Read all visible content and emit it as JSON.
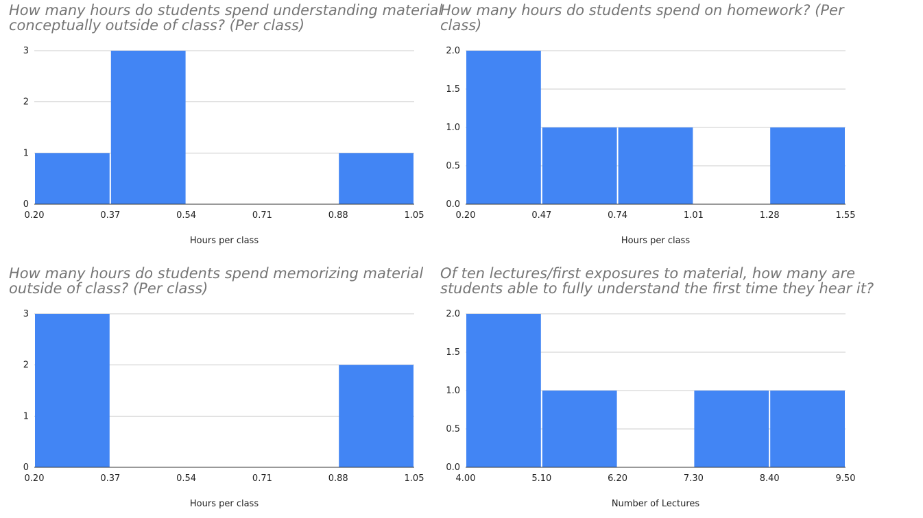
{
  "chart_data": [
    {
      "type": "bar",
      "title": "How many hours do students spend understanding material conceptually outside of class? (Per class)",
      "xlabel": "Hours per class",
      "ylabel": "",
      "bin_edges": [
        0.2,
        0.37,
        0.54,
        0.71,
        0.88,
        1.05
      ],
      "x_tick_labels": [
        "0.20",
        "0.37",
        "0.54",
        "0.71",
        "0.88",
        "1.05"
      ],
      "values": [
        1,
        3,
        0,
        0,
        1
      ],
      "ylim": [
        0,
        3
      ],
      "y_tick_labels": [
        "0",
        "1",
        "2",
        "3"
      ],
      "grid": true,
      "bar_color": "#4285F4"
    },
    {
      "type": "bar",
      "title": "How many hours do students spend on homework? (Per class)",
      "xlabel": "Hours per class",
      "ylabel": "",
      "bin_edges": [
        0.2,
        0.47,
        0.74,
        1.01,
        1.28,
        1.55
      ],
      "x_tick_labels": [
        "0.20",
        "0.47",
        "0.74",
        "1.01",
        "1.28",
        "1.55"
      ],
      "values": [
        2,
        1,
        1,
        0,
        1
      ],
      "ylim": [
        0,
        2
      ],
      "y_tick_labels": [
        "0.0",
        "0.5",
        "1.0",
        "1.5",
        "2.0"
      ],
      "grid": true,
      "bar_color": "#4285F4"
    },
    {
      "type": "bar",
      "title": "How many hours do students spend memorizing material outside of class? (Per class)",
      "xlabel": "Hours per class",
      "ylabel": "",
      "bin_edges": [
        0.2,
        0.37,
        0.54,
        0.71,
        0.88,
        1.05
      ],
      "x_tick_labels": [
        "0.20",
        "0.37",
        "0.54",
        "0.71",
        "0.88",
        "1.05"
      ],
      "values": [
        3,
        0,
        0,
        0,
        2
      ],
      "ylim": [
        0,
        3
      ],
      "y_tick_labels": [
        "0",
        "1",
        "2",
        "3"
      ],
      "grid": true,
      "bar_color": "#4285F4"
    },
    {
      "type": "bar",
      "title": "Of ten lectures/first exposures to material, how many are students able to fully understand the first time they hear it?",
      "xlabel": "Number of Lectures",
      "ylabel": "",
      "bin_edges": [
        4.0,
        5.1,
        6.2,
        7.3,
        8.4,
        9.5
      ],
      "x_tick_labels": [
        "4.00",
        "5.10",
        "6.20",
        "7.30",
        "8.40",
        "9.50"
      ],
      "values": [
        2,
        1,
        0,
        1,
        1
      ],
      "ylim": [
        0,
        2
      ],
      "y_tick_labels": [
        "0.0",
        "0.5",
        "1.0",
        "1.5",
        "2.0"
      ],
      "grid": true,
      "bar_color": "#4285F4"
    }
  ]
}
